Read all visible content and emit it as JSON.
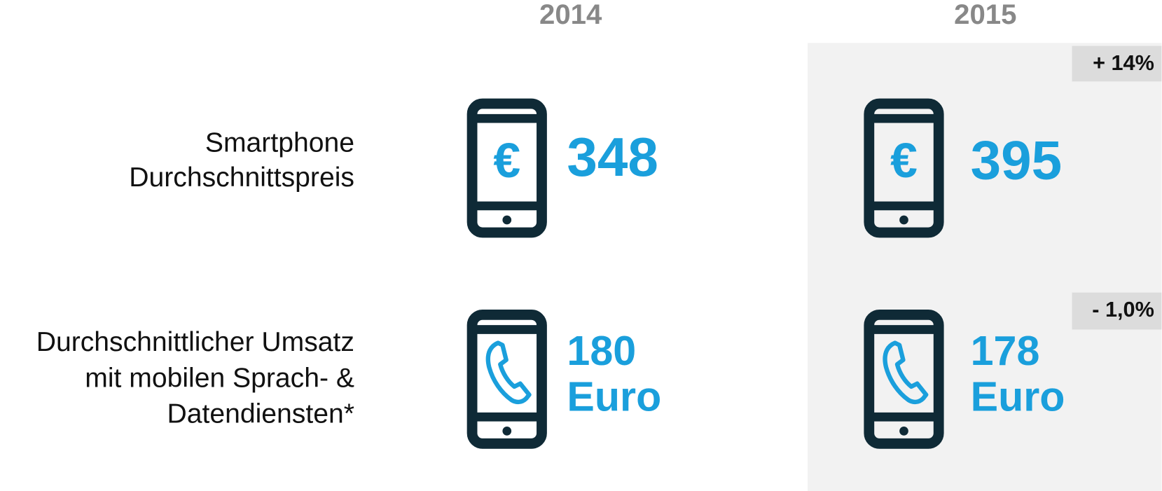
{
  "columns": [
    "2014",
    "2015"
  ],
  "rows": [
    {
      "label": [
        "Smartphone",
        "Durchschnittspreis"
      ],
      "icon_symbol": "€",
      "values": [
        348,
        395
      ],
      "change": "+ 14%"
    },
    {
      "label": [
        "Durchschnittlicher Umsatz",
        "mit mobilen Sprach- &",
        "Datendiensten*"
      ],
      "values": [
        180,
        178
      ],
      "unit": "Euro",
      "change": "- 1,0%"
    }
  ]
}
